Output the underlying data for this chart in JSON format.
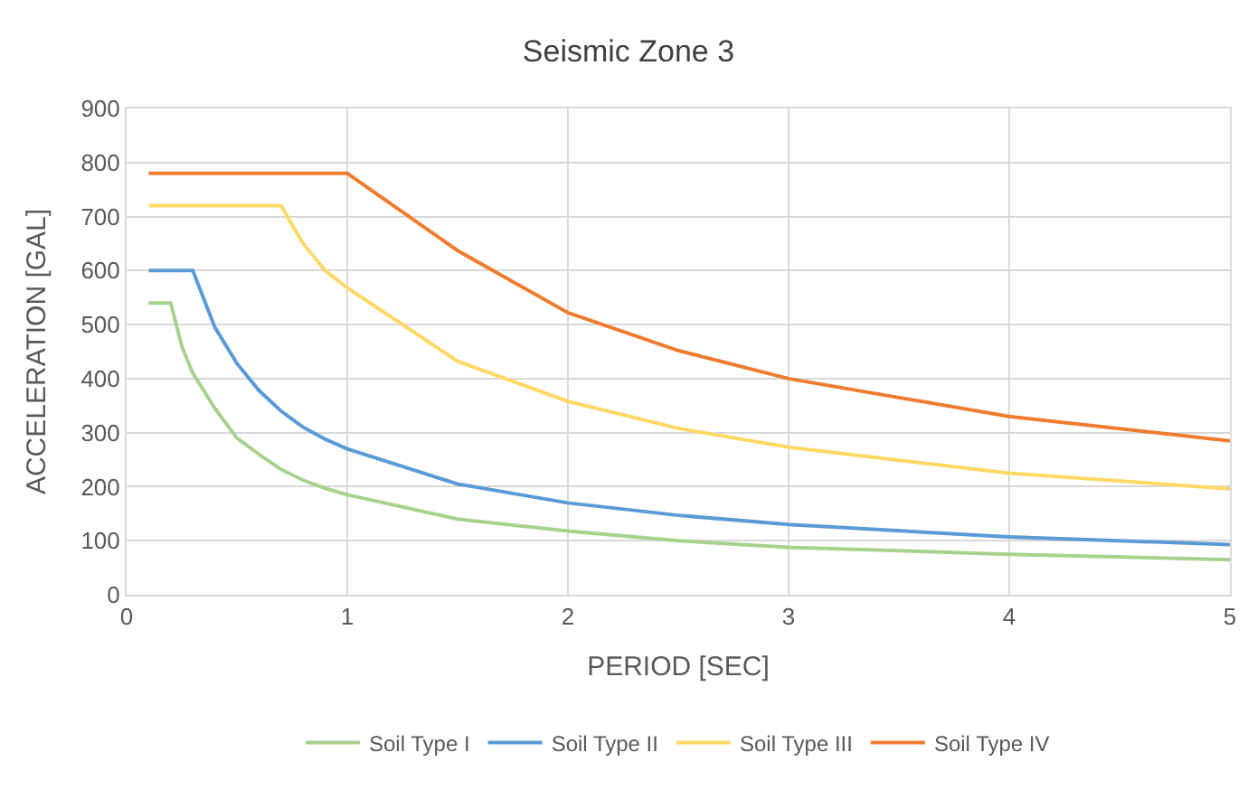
{
  "chart_data": {
    "type": "line",
    "title": "Seismic Zone 3",
    "xlabel": "PERIOD [SEC]",
    "ylabel": "ACCELERATION [GAL]",
    "xlim": [
      0,
      5
    ],
    "xticks": [
      0,
      1,
      2,
      3,
      4,
      5
    ],
    "ylim": [
      0,
      900
    ],
    "yticks": [
      0,
      100,
      200,
      300,
      400,
      500,
      600,
      700,
      800,
      900
    ],
    "grid": true,
    "legend": "bottom",
    "marker": "none",
    "line_style": "solid",
    "series": [
      {
        "name": "Soil Type I",
        "color": "#a9d18e",
        "x": [
          0.1,
          0.2,
          0.25,
          0.3,
          0.4,
          0.5,
          0.6,
          0.7,
          0.8,
          0.9,
          1.0,
          1.5,
          2.0,
          2.5,
          3.0,
          4.0,
          5.0
        ],
        "values": [
          540,
          540,
          460,
          410,
          345,
          290,
          260,
          232,
          212,
          197,
          185,
          140,
          118,
          100,
          88,
          75,
          65
        ]
      },
      {
        "name": "Soil Type II",
        "color": "#5b9bd5",
        "x": [
          0.1,
          0.3,
          0.4,
          0.5,
          0.6,
          0.7,
          0.8,
          0.9,
          1.0,
          1.5,
          2.0,
          2.5,
          3.0,
          4.0,
          5.0
        ],
        "values": [
          600,
          600,
          495,
          428,
          378,
          340,
          310,
          288,
          270,
          205,
          170,
          147,
          130,
          107,
          93
        ]
      },
      {
        "name": "Soil Type III",
        "color": "#ffd966",
        "x": [
          0.1,
          0.7,
          0.8,
          0.9,
          1.0,
          1.5,
          2.0,
          2.5,
          3.0,
          4.0,
          5.0
        ],
        "values": [
          720,
          720,
          650,
          600,
          568,
          432,
          358,
          308,
          273,
          225,
          196
        ]
      },
      {
        "name": "Soil Type IV",
        "color": "#ed7d31",
        "x": [
          0.1,
          1.0,
          1.5,
          2.0,
          2.5,
          3.0,
          4.0,
          5.0
        ],
        "values": [
          780,
          780,
          637,
          522,
          452,
          400,
          330,
          285
        ]
      }
    ]
  }
}
